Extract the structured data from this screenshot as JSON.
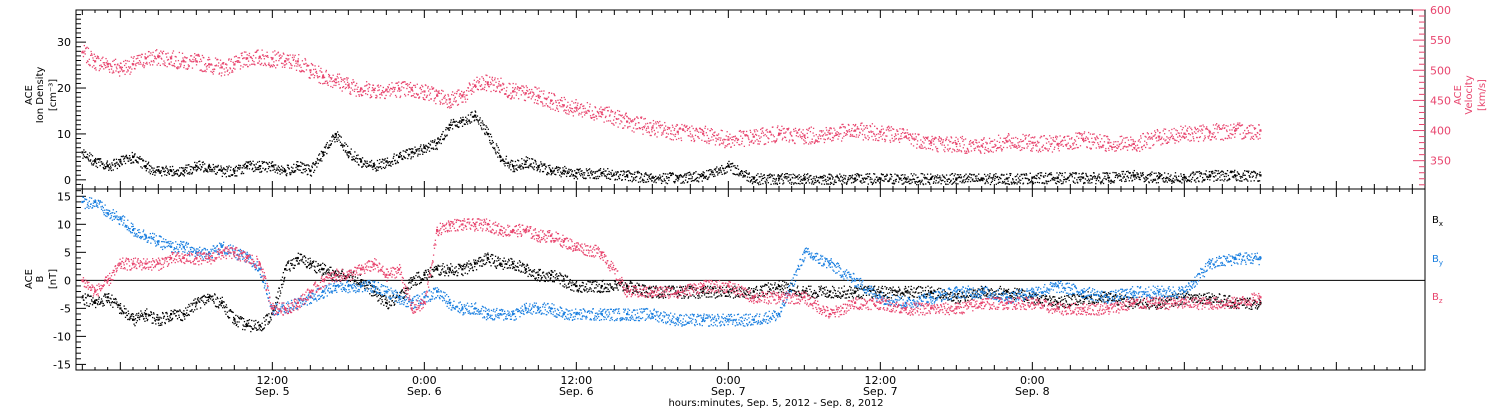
{
  "colors": {
    "density": "#000000",
    "velocity": "#e8456e",
    "bx": "#000000",
    "by": "#1a7fe0",
    "bz": "#e8456e",
    "frame": "#000000"
  },
  "chart_data": [
    {
      "type": "scatter",
      "panel": "plasma",
      "ylabel_left": [
        "ACE",
        "Ion Density",
        "[cm⁻³]"
      ],
      "ylabel_right": [
        "ACE",
        "Velocity",
        "[km/s]"
      ],
      "ylim_left": [
        -2,
        37
      ],
      "ylim_right": [
        303,
        600
      ],
      "yticks_left": [
        0,
        10,
        20,
        30
      ],
      "yticks_right": [
        350,
        400,
        450,
        500,
        550,
        600
      ],
      "x_unit": "hours since Sep. 5, 2012 00:00",
      "series": [
        {
          "key": "density",
          "axis": "left",
          "x": [
            -3,
            -2,
            -1,
            0,
            1,
            2,
            3,
            4,
            5,
            6,
            7,
            8,
            9,
            10,
            11,
            12,
            13,
            14,
            15,
            16,
            17,
            18,
            19,
            20,
            21,
            22,
            23,
            24,
            25,
            26,
            27,
            28,
            29,
            30,
            31,
            32,
            33,
            34,
            35,
            36,
            38,
            40,
            42,
            44,
            46,
            48,
            50,
            52,
            54,
            56,
            58,
            60,
            62,
            64,
            66,
            68,
            70,
            72,
            74,
            76,
            78,
            80,
            82,
            84,
            86,
            88,
            90
          ],
          "y": [
            6,
            4,
            3,
            4,
            5,
            3,
            2,
            2,
            2,
            3,
            3,
            2,
            2,
            3,
            3,
            3,
            2,
            3,
            2,
            6,
            10,
            6,
            4,
            3,
            4,
            5,
            6,
            7,
            8,
            12,
            13,
            14,
            10,
            5,
            3,
            4,
            3,
            2,
            2,
            1.5,
            1.5,
            1,
            0.5,
            0.5,
            1,
            3,
            0.3,
            0.3,
            0.3,
            0.3,
            0.3,
            0.3,
            0.3,
            0.3,
            0.3,
            0.3,
            0.3,
            0.5,
            0.5,
            0.5,
            0.5,
            1,
            0.5,
            0.5,
            1,
            1,
            1
          ]
        },
        {
          "key": "velocity",
          "axis": "right",
          "x": [
            -3,
            -2,
            -1,
            0,
            1,
            2,
            3,
            4,
            5,
            6,
            7,
            8,
            9,
            10,
            11,
            12,
            13,
            14,
            15,
            16,
            17,
            18,
            19,
            20,
            21,
            22,
            23,
            24,
            25,
            26,
            27,
            28,
            29,
            30,
            31,
            32,
            33,
            34,
            35,
            36,
            38,
            40,
            42,
            44,
            46,
            48,
            50,
            52,
            54,
            56,
            58,
            60,
            62,
            64,
            66,
            68,
            70,
            72,
            74,
            76,
            78,
            80,
            82,
            84,
            86,
            88,
            90
          ],
          "y": [
            530,
            515,
            510,
            505,
            510,
            520,
            522,
            520,
            515,
            515,
            510,
            505,
            510,
            520,
            522,
            520,
            515,
            515,
            500,
            490,
            485,
            475,
            470,
            468,
            468,
            470,
            468,
            465,
            458,
            452,
            457,
            475,
            480,
            475,
            465,
            462,
            458,
            450,
            442,
            438,
            430,
            415,
            405,
            398,
            395,
            385,
            390,
            395,
            392,
            395,
            400,
            398,
            390,
            380,
            378,
            375,
            382,
            380,
            378,
            385,
            380,
            378,
            390,
            395,
            398,
            400,
            400
          ]
        }
      ]
    },
    {
      "type": "scatter",
      "panel": "magnetic",
      "ylabel_left": [
        "ACE",
        "B",
        "[nT]"
      ],
      "ylim": [
        -16,
        16.3
      ],
      "yticks": [
        -15,
        -10,
        -5,
        0,
        5,
        10,
        15
      ],
      "zero_line": true,
      "legend": [
        "Bx",
        "By",
        "Bz"
      ],
      "legend_placement": "right",
      "series": [
        {
          "name": "Bx",
          "key": "bx",
          "x": [
            -3,
            -2,
            -1,
            0,
            1,
            2,
            3,
            4,
            5,
            6,
            7,
            8,
            9,
            10,
            11,
            12,
            13,
            14,
            15,
            16,
            17,
            18,
            19,
            20,
            21,
            22,
            23,
            24,
            25,
            26,
            27,
            28,
            29,
            30,
            31,
            32,
            33,
            34,
            35,
            36,
            38,
            40,
            42,
            44,
            46,
            48,
            50,
            52,
            54,
            56,
            58,
            60,
            62,
            64,
            66,
            68,
            70,
            72,
            74,
            76,
            78,
            80,
            82,
            84,
            86,
            88,
            90
          ],
          "y": [
            -3,
            -4,
            -3,
            -5,
            -7,
            -6,
            -7,
            -6,
            -6,
            -4,
            -3,
            -4,
            -7,
            -8,
            -8,
            -6,
            2,
            4,
            3,
            2,
            1,
            1,
            0,
            -2,
            -4,
            -3,
            0,
            1,
            2,
            2,
            2,
            3,
            4,
            3,
            3,
            2,
            1,
            1,
            0,
            -1,
            -1,
            -1,
            -2,
            -2,
            -2,
            -2,
            -2,
            -1,
            -2,
            -2,
            -2,
            -2,
            -2,
            -2,
            -3,
            -2,
            -2,
            -3,
            -4,
            -3,
            -3,
            -4,
            -4,
            -3,
            -3,
            -4,
            -4
          ]
        },
        {
          "name": "By",
          "key": "by",
          "x": [
            -3,
            -2,
            -1,
            0,
            1,
            2,
            3,
            4,
            5,
            6,
            7,
            8,
            9,
            10,
            11,
            12,
            13,
            14,
            15,
            16,
            17,
            18,
            19,
            20,
            21,
            22,
            23,
            24,
            25,
            26,
            27,
            28,
            29,
            30,
            31,
            32,
            33,
            34,
            35,
            36,
            38,
            40,
            42,
            44,
            46,
            48,
            50,
            52,
            54,
            56,
            58,
            60,
            62,
            64,
            66,
            68,
            70,
            72,
            74,
            76,
            78,
            80,
            82,
            84,
            86,
            88,
            90
          ],
          "y": [
            14,
            14,
            12,
            11,
            9,
            8,
            7,
            6,
            6,
            5,
            5,
            6,
            5,
            4,
            2,
            -5,
            -5,
            -4,
            -3,
            -2,
            -1,
            -1,
            -1,
            -1,
            -2,
            -3,
            -4,
            -3,
            -2,
            -4,
            -5,
            -5,
            -6,
            -6,
            -6,
            -5,
            -5,
            -5,
            -6,
            -6,
            -6,
            -6,
            -6,
            -7,
            -7,
            -7,
            -7,
            -6,
            5,
            3,
            0,
            -3,
            -4,
            -3,
            -2,
            -2,
            -3,
            -2,
            -1,
            -2,
            -3,
            -2,
            -2,
            -2,
            3,
            4,
            4
          ]
        },
        {
          "name": "Bz",
          "key": "bz",
          "x": [
            -3,
            -2,
            -1,
            0,
            1,
            2,
            3,
            4,
            5,
            6,
            7,
            8,
            9,
            10,
            11,
            12,
            13,
            14,
            15,
            16,
            17,
            18,
            19,
            20,
            21,
            22,
            23,
            24,
            25,
            26,
            27,
            28,
            29,
            30,
            31,
            32,
            33,
            34,
            35,
            36,
            38,
            40,
            42,
            44,
            46,
            48,
            50,
            52,
            54,
            56,
            58,
            60,
            62,
            64,
            66,
            68,
            70,
            72,
            74,
            76,
            78,
            80,
            82,
            84,
            86,
            88,
            90
          ],
          "y": [
            0,
            -2,
            0,
            3,
            3,
            3,
            3,
            4,
            4,
            4,
            4,
            5,
            5,
            4,
            3,
            -5,
            -5,
            -4,
            -2,
            0,
            1,
            1,
            2,
            3,
            1,
            2,
            -5,
            -4,
            9,
            10,
            10,
            10,
            10,
            9,
            9,
            9,
            8,
            8,
            7,
            6,
            5,
            -2,
            -2,
            -2,
            -1,
            -1,
            -3,
            -3,
            -3,
            -6,
            -4,
            -4,
            -5,
            -5,
            -5,
            -4,
            -4,
            -4,
            -5,
            -5,
            -5,
            -4,
            -4,
            -4,
            -4,
            -4,
            -3
          ]
        }
      ]
    }
  ],
  "x_axis": {
    "range_hours": [
      -3.5,
      103
    ],
    "major_ticks": [
      {
        "hour": 12,
        "time": "12:00",
        "date": "Sep. 5"
      },
      {
        "hour": 24,
        "time": "0:00",
        "date": "Sep. 6"
      },
      {
        "hour": 36,
        "time": "12:00",
        "date": "Sep. 6"
      },
      {
        "hour": 48,
        "time": "0:00",
        "date": "Sep. 7"
      },
      {
        "hour": 60,
        "time": "12:00",
        "date": "Sep. 7"
      },
      {
        "hour": 72,
        "time": "0:00",
        "date": "Sep. 8"
      }
    ],
    "xlabel": "hours:minutes, Sep.  5, 2012 - Sep.  8, 2012"
  },
  "legend_labels": {
    "bx_main": "B",
    "bx_sub": "x",
    "by_main": "B",
    "by_sub": "y",
    "bz_main": "B",
    "bz_sub": "z"
  },
  "plasma_labels": {
    "left_1": "ACE",
    "left_2": "Ion Density",
    "left_3": "[cm⁻³]",
    "right_1": "ACE",
    "right_2": "Velocity",
    "right_3": "[km/s]"
  },
  "mag_labels": {
    "left_1": "ACE",
    "left_2": "B",
    "left_3": "[nT]"
  }
}
